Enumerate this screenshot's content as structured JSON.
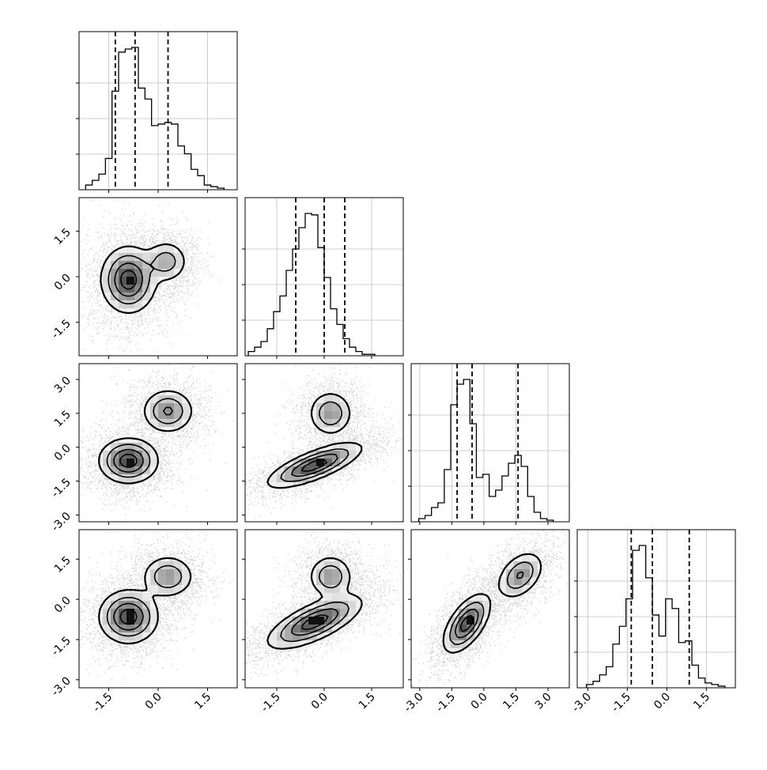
{
  "chart_data": {
    "type": "corner",
    "title": "",
    "dimensions": 4,
    "grid": true,
    "quantile_lines": "dashed",
    "params": [
      {
        "xlim": [
          -2.4,
          2.4
        ],
        "ticks": [
          "-1.5",
          "0.0",
          "1.5"
        ],
        "tick_values": [
          -1.5,
          0.0,
          1.5
        ],
        "quantiles": [
          -1.3,
          -0.7,
          0.3
        ],
        "hist": {
          "start": -2.2,
          "step": 0.2,
          "counts": [
            0.03,
            0.06,
            0.1,
            0.2,
            0.63,
            0.88,
            0.9,
            0.91,
            0.65,
            0.58,
            0.41,
            0.42,
            0.43,
            0.42,
            0.28,
            0.23,
            0.13,
            0.09,
            0.03,
            0.02,
            0.01
          ]
        }
      },
      {
        "xlim": [
          -2.5,
          2.5
        ],
        "ticks": [
          "-1.5",
          "0.0",
          "1.5"
        ],
        "tick_values": [
          -1.5,
          0.0,
          1.5
        ],
        "quantiles": [
          -0.9,
          0.0,
          0.65
        ],
        "hist": {
          "start": -2.4,
          "step": 0.2,
          "counts": [
            0.03,
            0.06,
            0.1,
            0.19,
            0.31,
            0.42,
            0.6,
            0.75,
            0.9,
            1.0,
            0.99,
            0.76,
            0.55,
            0.33,
            0.22,
            0.12,
            0.06,
            0.03,
            0.01,
            0.01
          ]
        }
      },
      {
        "xlim": [
          -3.4,
          4.0
        ],
        "ticks": [
          "-3.0",
          "-1.5",
          "0.0",
          "1.5",
          "3.0"
        ],
        "tick_values": [
          -3.0,
          -1.5,
          0.0,
          1.5,
          3.0
        ],
        "quantiles": [
          -1.25,
          -0.55,
          1.6
        ],
        "hist": {
          "start": -3.05,
          "step": 0.3,
          "counts": [
            0.02,
            0.04,
            0.09,
            0.12,
            0.33,
            0.74,
            0.87,
            0.9,
            0.62,
            0.28,
            0.3,
            0.16,
            0.2,
            0.29,
            0.37,
            0.42,
            0.35,
            0.16,
            0.06,
            0.02,
            0.01
          ]
        }
      },
      {
        "xlim": [
          -3.4,
          2.6
        ],
        "ticks": [
          "-3.0",
          "-1.5",
          "0.0",
          "1.5"
        ],
        "tick_values": [
          -3.0,
          -1.5,
          0.0,
          1.5
        ],
        "quantiles": [
          -1.35,
          -0.55,
          0.85
        ],
        "hist": {
          "start": -3.05,
          "step": 0.25,
          "counts": [
            0.02,
            0.04,
            0.08,
            0.13,
            0.27,
            0.38,
            0.55,
            0.85,
            0.88,
            0.68,
            0.45,
            0.32,
            0.55,
            0.49,
            0.28,
            0.29,
            0.14,
            0.06,
            0.03,
            0.02,
            0.01
          ]
        }
      }
    ],
    "y_axes": [
      null,
      {
        "ylim": [
          -2.6,
          2.6
        ],
        "ticks": [
          "-1.5",
          "0.0",
          "1.5"
        ],
        "tick_values": [
          -1.5,
          0.0,
          1.5
        ]
      },
      {
        "ylim": [
          -3.3,
          3.7
        ],
        "ticks": [
          "-3.0",
          "-1.5",
          "0.0",
          "1.5",
          "3.0"
        ],
        "tick_values": [
          -3.0,
          -1.5,
          0.0,
          1.5,
          3.0
        ]
      },
      {
        "ylim": [
          -3.3,
          2.6
        ],
        "ticks": [
          "-3.0",
          "-1.5",
          "0.0",
          "1.5"
        ],
        "tick_values": [
          -3.0,
          -1.5,
          0.0,
          1.5
        ]
      }
    ],
    "pairs": [
      {
        "row": 1,
        "col": 0,
        "components": [
          {
            "center": [
              -0.9,
              -0.1
            ],
            "sigma": [
              0.42,
              0.55
            ],
            "rho": 0.0,
            "weight": 1.0
          },
          {
            "center": [
              0.25,
              0.5
            ],
            "sigma": [
              0.33,
              0.35
            ],
            "rho": 0.0,
            "weight": 0.5
          }
        ]
      },
      {
        "row": 2,
        "col": 0,
        "components": [
          {
            "center": [
              -0.9,
              -0.6
            ],
            "sigma": [
              0.45,
              0.5
            ],
            "rho": 0.0,
            "weight": 1.0
          },
          {
            "center": [
              0.3,
              1.6
            ],
            "sigma": [
              0.4,
              0.5
            ],
            "rho": 0.0,
            "weight": 0.65
          }
        ]
      },
      {
        "row": 2,
        "col": 1,
        "components": [
          {
            "center": [
              -0.3,
              -0.8
            ],
            "sigma": [
              0.75,
              0.5
            ],
            "rho": 0.75,
            "weight": 1.0
          },
          {
            "center": [
              0.2,
              1.5
            ],
            "sigma": [
              0.35,
              0.5
            ],
            "rho": 0.0,
            "weight": 0.6
          }
        ]
      },
      {
        "row": 3,
        "col": 0,
        "components": [
          {
            "center": [
              -0.9,
              -0.65
            ],
            "sigma": [
              0.45,
              0.5
            ],
            "rho": 0.0,
            "weight": 1.0
          },
          {
            "center": [
              0.3,
              0.85
            ],
            "sigma": [
              0.4,
              0.4
            ],
            "rho": 0.0,
            "weight": 0.6
          }
        ]
      },
      {
        "row": 3,
        "col": 1,
        "components": [
          {
            "center": [
              -0.3,
              -0.85
            ],
            "sigma": [
              0.75,
              0.5
            ],
            "rho": 0.7,
            "weight": 1.0
          },
          {
            "center": [
              0.2,
              0.85
            ],
            "sigma": [
              0.35,
              0.4
            ],
            "rho": 0.0,
            "weight": 0.6
          }
        ]
      },
      {
        "row": 3,
        "col": 2,
        "components": [
          {
            "center": [
              -0.8,
              -0.9
            ],
            "sigma": [
              0.55,
              0.55
            ],
            "rho": 0.6,
            "weight": 1.0
          },
          {
            "center": [
              1.7,
              0.9
            ],
            "sigma": [
              0.55,
              0.45
            ],
            "rho": 0.4,
            "weight": 0.65
          }
        ]
      }
    ]
  }
}
